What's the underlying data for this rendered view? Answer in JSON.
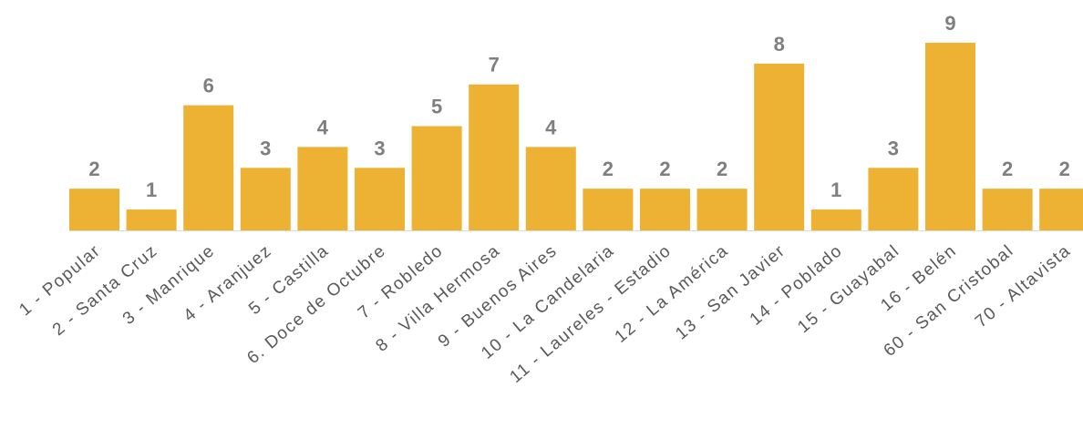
{
  "chart_data": {
    "type": "bar",
    "categories": [
      "1 - Popular",
      "2 - Santa Cruz",
      "3 - Manrique",
      "4 - Aranjuez",
      "5 - Castilla",
      "6. Doce de Octubre",
      "7 - Robledo",
      "8 - Villa Hermosa",
      "9 - Buenos Aires",
      "10 - La Candelaria",
      "11 - Laureles - Estadio",
      "12 - La América",
      "13 - San Javier",
      "14 - Poblado",
      "15 - Guayabal",
      "16 - Belén",
      "60 - San Cristobal",
      "70 - Altavista"
    ],
    "values": [
      2,
      1,
      6,
      3,
      4,
      3,
      5,
      7,
      4,
      2,
      2,
      2,
      8,
      1,
      3,
      9,
      2,
      2
    ],
    "title": "",
    "xlabel": "",
    "ylabel": "",
    "ylim": [
      0,
      9
    ],
    "grid": false,
    "legend": "none",
    "data_labels": true,
    "colors": {
      "bar": "#EDB134",
      "value_label": "#7F7F7F",
      "category_label": "#595959",
      "axis": "#D9D9D9"
    }
  }
}
